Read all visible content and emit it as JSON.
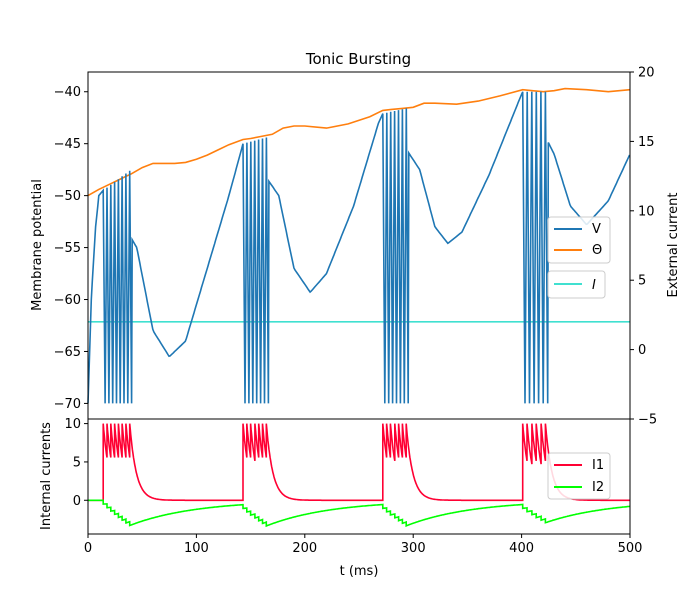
{
  "chart_data": [
    {
      "type": "line",
      "title": "Tonic Bursting",
      "ylabel": "Membrane potential",
      "y2label": "External current",
      "xlim": [
        0,
        500
      ],
      "ylim": [
        -71.5,
        -38.1
      ],
      "y2lim": [
        -5,
        20
      ],
      "yticks": [
        -70,
        -65,
        -60,
        -55,
        -50,
        -45,
        -40
      ],
      "y2ticks": [
        -5,
        0,
        5,
        10,
        15,
        20
      ],
      "bursts": [
        {
          "start": 14,
          "spikes": 8,
          "isi": 3.5,
          "peak_start": -49.5,
          "peak_end": -47.6
        },
        {
          "start": 143,
          "spikes": 7,
          "isi": 3.6,
          "peak_start": -45.0,
          "peak_end": -44.4
        },
        {
          "start": 272,
          "spikes": 7,
          "isi": 3.6,
          "peak_start": -42.1,
          "peak_end": -41.6
        },
        {
          "start": 401,
          "spikes": 6,
          "isi": 4.2,
          "peak_start": -40.0,
          "peak_end": -40.0
        }
      ],
      "series": [
        {
          "name": "V",
          "color": "#1f77b4",
          "axis": "left",
          "x": [
            0,
            3,
            7,
            10,
            14,
            45,
            60,
            75,
            90,
            110,
            130,
            143,
            176,
            190,
            205,
            220,
            245,
            268,
            272,
            306,
            320,
            332,
            345,
            370,
            397,
            401,
            430,
            445,
            460,
            480,
            500
          ],
          "y": [
            -70,
            -60,
            -53,
            -50,
            -49.5,
            -55,
            -63,
            -65.5,
            -64,
            -57,
            -50,
            -45,
            -50,
            -57,
            -59.3,
            -57.5,
            -51,
            -43,
            -42.1,
            -47.5,
            -53,
            -54.6,
            -53.5,
            -48,
            -41,
            -40,
            -46,
            -51,
            -52.8,
            -50.5,
            -46
          ]
        },
        {
          "name": "Θ",
          "color": "#ff7f0e",
          "axis": "left",
          "x": [
            0,
            10,
            20,
            30,
            40,
            50,
            60,
            70,
            80,
            90,
            100,
            110,
            120,
            130,
            143,
            150,
            160,
            170,
            180,
            190,
            200,
            220,
            240,
            260,
            272,
            280,
            290,
            300,
            310,
            320,
            340,
            360,
            380,
            401,
            410,
            420,
            430,
            440,
            460,
            480,
            500
          ],
          "y": [
            -50,
            -49.4,
            -48.9,
            -48.4,
            -47.9,
            -47.3,
            -46.9,
            -46.9,
            -46.9,
            -46.8,
            -46.5,
            -46.1,
            -45.6,
            -45.1,
            -44.6,
            -44.5,
            -44.3,
            -44.1,
            -43.5,
            -43.3,
            -43.3,
            -43.5,
            -43.1,
            -42.4,
            -41.8,
            -41.7,
            -41.6,
            -41.5,
            -41.1,
            -41.1,
            -41.2,
            -40.9,
            -40.4,
            -39.8,
            -39.9,
            -40.0,
            -39.9,
            -39.7,
            -39.8,
            -40.0,
            -39.8
          ]
        },
        {
          "name": "I",
          "color": "#40e0d0",
          "axis": "right",
          "x": [
            0,
            500
          ],
          "y": [
            2,
            2
          ]
        }
      ],
      "legend": [
        "V",
        "Θ",
        "I"
      ],
      "legend_placement": "right"
    },
    {
      "type": "line",
      "xlabel": "t (ms)",
      "ylabel": "Internal currents",
      "xlim": [
        0,
        500
      ],
      "ylim": [
        -4.4,
        10.6
      ],
      "xticks": [
        0,
        100,
        200,
        300,
        400,
        500
      ],
      "yticks": [
        0,
        5,
        10
      ],
      "series": [
        {
          "name": "I1",
          "color": "#ff0033",
          "rest": 0,
          "jump": 10,
          "decay_tau": 6
        },
        {
          "name": "I2",
          "color": "#00ff00",
          "start": 0,
          "step": -0.5,
          "relax_tau": 60
        }
      ],
      "legend": [
        "I1",
        "I2"
      ],
      "legend_placement": "right"
    }
  ]
}
